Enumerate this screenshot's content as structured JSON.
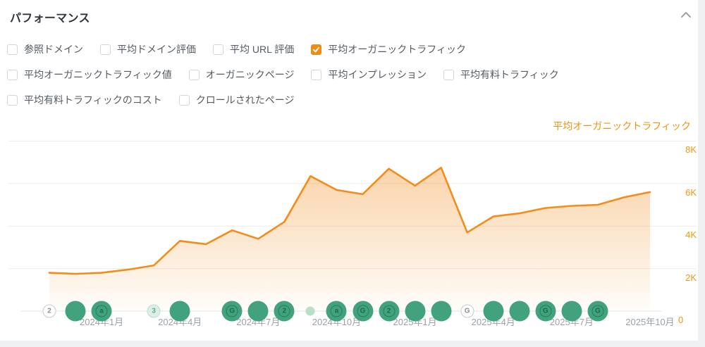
{
  "panel": {
    "title": "パフォーマンス"
  },
  "metrics": {
    "rows": [
      [
        {
          "label": "参照ドメイン",
          "checked": false
        },
        {
          "label": "平均ドメイン評価",
          "checked": false
        },
        {
          "label": "平均 URL 評価",
          "checked": false
        },
        {
          "label": "平均オーガニックトラフィック",
          "checked": true
        }
      ],
      [
        {
          "label": "平均オーガニックトラフィック値",
          "checked": false
        },
        {
          "label": "オーガニックページ",
          "checked": false
        },
        {
          "label": "平均インプレッション",
          "checked": false
        },
        {
          "label": "平均有料トラフィック",
          "checked": false
        }
      ],
      [
        {
          "label": "平均有料トラフィックのコスト",
          "checked": false
        },
        {
          "label": "クロールされたページ",
          "checked": false
        }
      ]
    ]
  },
  "chart_data": {
    "type": "area",
    "title": "平均オーガニックトラフィック",
    "legend": "平均オーガニックトラフィック",
    "legend_position": "top-right",
    "grid": true,
    "ylim": [
      0,
      8000
    ],
    "y_tick_labels": [
      "8K",
      "6K",
      "4K",
      "2K",
      "0"
    ],
    "y_tick_values": [
      8000,
      6000,
      4000,
      2000,
      0
    ],
    "x": [
      "2023年11月",
      "2023年12月",
      "2024年1月",
      "2024年2月",
      "2024年3月",
      "2024年4月",
      "2024年5月",
      "2024年6月",
      "2024年7月",
      "2024年8月",
      "2024年9月",
      "2024年10月",
      "2024年11月",
      "2024年12月",
      "2025年1月",
      "2025年2月",
      "2025年3月",
      "2025年4月",
      "2025年5月",
      "2025年6月",
      "2025年7月",
      "2025年8月",
      "2025年9月",
      "2025年10月"
    ],
    "values": [
      1800,
      1750,
      1800,
      1950,
      2150,
      3300,
      3150,
      3800,
      3400,
      4200,
      6350,
      5700,
      5500,
      6700,
      5900,
      6750,
      3700,
      4450,
      4600,
      4850,
      4950,
      5000,
      5350,
      5600
    ],
    "x_tick_labels": [
      {
        "label": "2024年1月",
        "month_index": 2
      },
      {
        "label": "2024年4月",
        "month_index": 5
      },
      {
        "label": "2024年7月",
        "month_index": 8
      },
      {
        "label": "2024年10月",
        "month_index": 11
      },
      {
        "label": "2025年1月",
        "month_index": 14
      },
      {
        "label": "2025年4月",
        "month_index": 17
      },
      {
        "label": "2025年7月",
        "month_index": 20
      },
      {
        "label": "2025年10月",
        "month_index": 23
      }
    ],
    "events": [
      {
        "month_index": 0,
        "style": "outline",
        "glyph": "2"
      },
      {
        "month_index": 1,
        "style": "solid",
        "glyph": ""
      },
      {
        "month_index": 2,
        "style": "solid",
        "glyph": "a"
      },
      {
        "month_index": 4,
        "style": "pale",
        "glyph": "3"
      },
      {
        "month_index": 5,
        "style": "solid",
        "glyph": ""
      },
      {
        "month_index": 7,
        "style": "solid",
        "glyph": "G"
      },
      {
        "month_index": 8,
        "style": "solid",
        "glyph": ""
      },
      {
        "month_index": 9,
        "style": "solid",
        "glyph": "2"
      },
      {
        "month_index": 10,
        "style": "dot",
        "glyph": ""
      },
      {
        "month_index": 11,
        "style": "solid",
        "glyph": "a"
      },
      {
        "month_index": 12,
        "style": "solid",
        "glyph": "G"
      },
      {
        "month_index": 13,
        "style": "solid",
        "glyph": "2"
      },
      {
        "month_index": 14,
        "style": "solid",
        "glyph": ""
      },
      {
        "month_index": 15,
        "style": "solid",
        "glyph": ""
      },
      {
        "month_index": 16,
        "style": "outline",
        "glyph": "G"
      },
      {
        "month_index": 17,
        "style": "solid",
        "glyph": ""
      },
      {
        "month_index": 18,
        "style": "solid",
        "glyph": ""
      },
      {
        "month_index": 19,
        "style": "solid",
        "glyph": "G"
      },
      {
        "month_index": 20,
        "style": "solid",
        "glyph": ""
      },
      {
        "month_index": 21,
        "style": "solid",
        "glyph": "G"
      }
    ],
    "colors": {
      "line": "#f28c1b",
      "area": "#f5a02d",
      "axis_labels": "#f2950f",
      "x_labels": "#9aa2a9",
      "grid": "#ececec",
      "event_solid": "#42a27e",
      "event_pale": "#ddefe4",
      "checkbox_checked": "#f28b16"
    }
  }
}
